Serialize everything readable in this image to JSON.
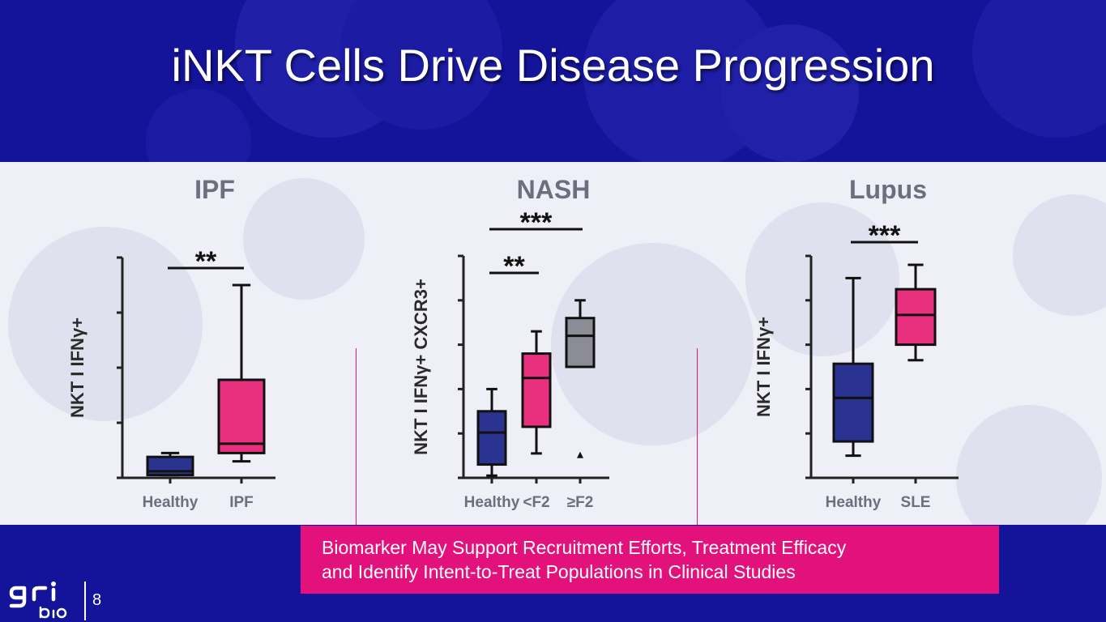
{
  "slide": {
    "title": "iNKT Cells Drive Disease Progression",
    "callout_line1": "Biomarker May Support Recruitment Efforts, Treatment Efficacy",
    "callout_line2": "and Identify Intent-to-Treat Populations in Clinical Studies",
    "page_number": "8",
    "logo_text": "gri bio"
  },
  "colors": {
    "background_blue": "#14149a",
    "healthy_box": "#2a3390",
    "disease_box": "#e8307f",
    "advanced_box": "#8c8c96",
    "accent_magenta": "#e3117c"
  },
  "chart_data": [
    {
      "type": "box",
      "title": "IPF",
      "ylabel": "NKT I IFNγ+",
      "ylim": [
        0,
        4
      ],
      "yticks": [
        0,
        1,
        2,
        3,
        4
      ],
      "show_tick_labels": false,
      "categories": [
        "Healthy",
        "IPF"
      ],
      "series": [
        {
          "category": "Healthy",
          "color": "#2a3390",
          "min": 0.05,
          "q1": 0.05,
          "median": 0.12,
          "q3": 0.38,
          "max": 0.45
        },
        {
          "category": "IPF",
          "color": "#e8307f",
          "min": 0.3,
          "q1": 0.45,
          "median": 0.62,
          "q3": 1.78,
          "max": 3.5
        }
      ],
      "significance": [
        {
          "from": 0,
          "to": 1,
          "label": "**"
        }
      ]
    },
    {
      "type": "box",
      "title": "NASH",
      "ylabel": "NKT I IFNγ+ CXCR3+",
      "ylim": [
        0,
        5
      ],
      "yticks": [
        0,
        1,
        2,
        3,
        4,
        5
      ],
      "show_tick_labels": false,
      "categories": [
        "Healthy",
        "<F2",
        "≥F2"
      ],
      "series": [
        {
          "category": "Healthy",
          "color": "#2a3390",
          "min": 0.05,
          "q1": 0.3,
          "median": 1.02,
          "q3": 1.5,
          "max": 2.0
        },
        {
          "category": "<F2",
          "color": "#e8307f",
          "min": 0.55,
          "q1": 1.15,
          "median": 2.25,
          "q3": 2.8,
          "max": 3.3
        },
        {
          "category": "≥F2",
          "color": "#8c8c96",
          "min": 2.5,
          "q1": 2.5,
          "median": 3.2,
          "q3": 3.6,
          "max": 4.0,
          "outliers": [
            0.5
          ]
        }
      ],
      "significance": [
        {
          "from": 0,
          "to": 1,
          "label": "**"
        },
        {
          "from": 0,
          "to": 2,
          "label": "***"
        }
      ]
    },
    {
      "type": "box",
      "title": "Lupus",
      "ylabel": "NKT I IFNγ+",
      "ylim": [
        0,
        5
      ],
      "yticks": [
        0,
        1,
        2,
        3,
        4,
        5
      ],
      "show_tick_labels": false,
      "categories": [
        "Healthy",
        "SLE"
      ],
      "series": [
        {
          "category": "Healthy",
          "color": "#2a3390",
          "min": 0.5,
          "q1": 0.82,
          "median": 1.8,
          "q3": 2.57,
          "max": 4.5
        },
        {
          "category": "SLE",
          "color": "#e8307f",
          "min": 2.65,
          "q1": 3.0,
          "median": 3.67,
          "q3": 4.25,
          "max": 4.8
        }
      ],
      "significance": [
        {
          "from": 0,
          "to": 1,
          "label": "***"
        }
      ]
    }
  ]
}
